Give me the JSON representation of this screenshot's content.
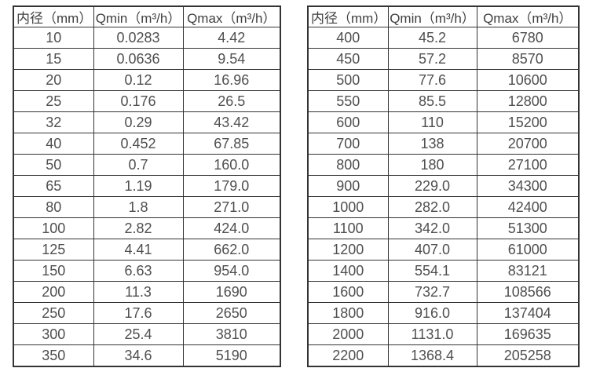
{
  "colors": {
    "background": "#ffffff",
    "border": "#333333",
    "header_text": "#3f3f3f",
    "cell_text": "#4f4f4f"
  },
  "tables": [
    {
      "name": "flow-range-table-small-diameters",
      "headers": [
        "内径（mm）",
        "Qmin（m³/h）",
        "Qmax（m³/h）"
      ],
      "rows": [
        [
          "10",
          "0.0283",
          "4.42"
        ],
        [
          "15",
          "0.0636",
          "9.54"
        ],
        [
          "20",
          "0.12",
          "16.96"
        ],
        [
          "25",
          "0.176",
          "26.5"
        ],
        [
          "32",
          "0.29",
          "43.42"
        ],
        [
          "40",
          "0.452",
          "67.85"
        ],
        [
          "50",
          "0.7",
          "160.0"
        ],
        [
          "65",
          "1.19",
          "179.0"
        ],
        [
          "80",
          "1.8",
          "271.0"
        ],
        [
          "100",
          "2.82",
          "424.0"
        ],
        [
          "125",
          "4.41",
          "662.0"
        ],
        [
          "150",
          "6.63",
          "954.0"
        ],
        [
          "200",
          "11.3",
          "1690"
        ],
        [
          "250",
          "17.6",
          "2650"
        ],
        [
          "300",
          "25.4",
          "3810"
        ],
        [
          "350",
          "34.6",
          "5190"
        ]
      ]
    },
    {
      "name": "flow-range-table-large-diameters",
      "headers": [
        "内径（mm）",
        "Qmin（m³/h）",
        "Qmax（m³/h）"
      ],
      "rows": [
        [
          "400",
          "45.2",
          "6780"
        ],
        [
          "450",
          "57.2",
          "8570"
        ],
        [
          "500",
          "77.6",
          "10600"
        ],
        [
          "550",
          "85.5",
          "12800"
        ],
        [
          "600",
          "110",
          "15200"
        ],
        [
          "700",
          "138",
          "20700"
        ],
        [
          "800",
          "180",
          "27100"
        ],
        [
          "900",
          "229.0",
          "34300"
        ],
        [
          "1000",
          "282.0",
          "42400"
        ],
        [
          "1100",
          "342.0",
          "51300"
        ],
        [
          "1200",
          "407.0",
          "61000"
        ],
        [
          "1400",
          "554.1",
          "83121"
        ],
        [
          "1600",
          "732.7",
          "108566"
        ],
        [
          "1800",
          "916.0",
          "137404"
        ],
        [
          "2000",
          "1131.0",
          "169635"
        ],
        [
          "2200",
          "1368.4",
          "205258"
        ]
      ]
    }
  ],
  "cell_names": [
    "diameter-cell",
    "qmin-cell",
    "qmax-cell"
  ],
  "header_names": [
    "diameter-header",
    "qmin-header",
    "qmax-header"
  ]
}
